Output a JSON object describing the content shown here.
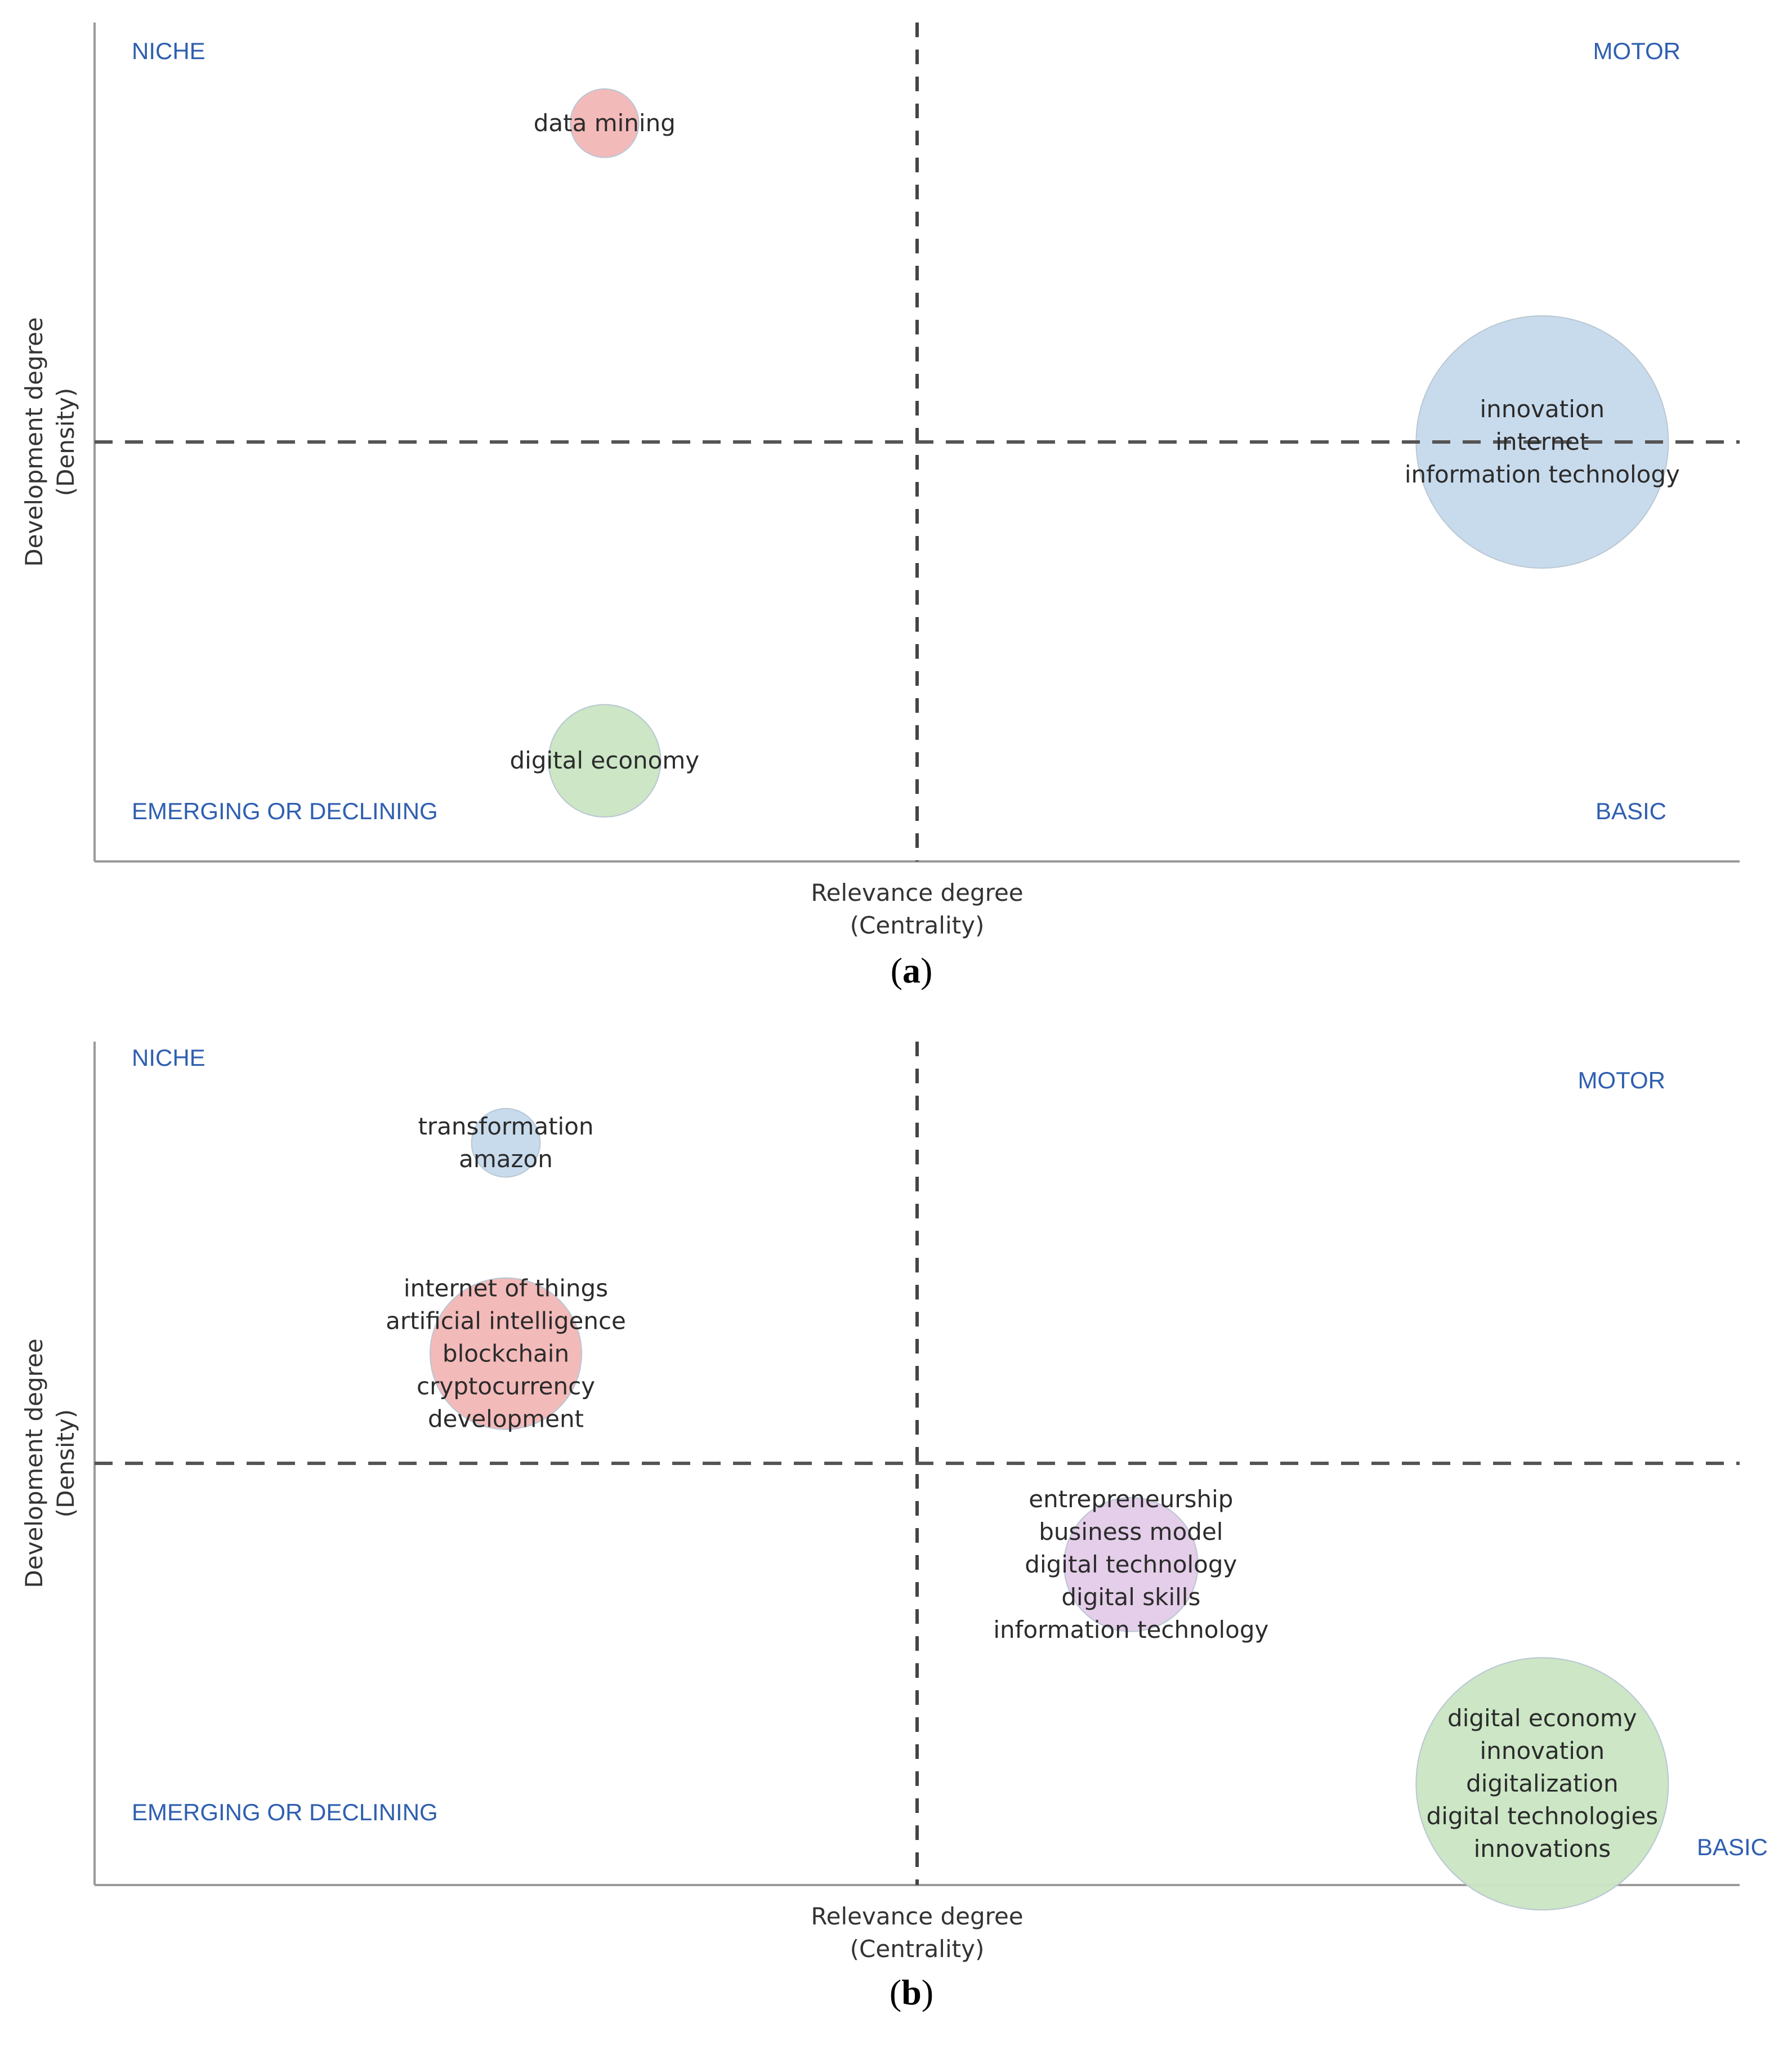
{
  "chart_data": [
    {
      "type": "scatter",
      "subtype": "strategic-diagram-bubble",
      "panel_label": "(a)",
      "xlabel": [
        "Relevance degree",
        "(Centrality)"
      ],
      "ylabel": [
        "Development degree",
        "(Density)"
      ],
      "xlim": [
        0,
        1
      ],
      "ylim": [
        0,
        1
      ],
      "grid": false,
      "quadrants": {
        "top_left": "NICHE",
        "top_right": "MOTOR",
        "bottom_left": "EMERGING OR DECLINING",
        "bottom_right": "BASIC"
      },
      "clusters": [
        {
          "labels": [
            "data mining"
          ],
          "x": 0.31,
          "y": 0.88,
          "size": 0.02,
          "color": "#f2b6b6"
        },
        {
          "labels": [
            "innovation",
            "internet",
            "information technology"
          ],
          "x": 0.88,
          "y": 0.5,
          "size": 1.0,
          "color": "#c5d9ec"
        },
        {
          "labels": [
            "digital economy"
          ],
          "x": 0.31,
          "y": 0.12,
          "size": 0.12,
          "color": "#c9e5c3"
        }
      ]
    },
    {
      "type": "scatter",
      "subtype": "strategic-diagram-bubble",
      "panel_label": "(b)",
      "xlabel": [
        "Relevance degree",
        "(Centrality)"
      ],
      "ylabel": [
        "Development degree",
        "(Density)"
      ],
      "xlim": [
        0,
        1
      ],
      "ylim": [
        0,
        1
      ],
      "grid": false,
      "quadrants": {
        "top_left": "NICHE",
        "top_right": "MOTOR",
        "bottom_left": "EMERGING OR DECLINING",
        "bottom_right": "BASIC"
      },
      "clusters": [
        {
          "labels": [
            "transformation",
            "amazon"
          ],
          "x": 0.25,
          "y": 0.88,
          "size": 0.02,
          "color": "#c5d9ec"
        },
        {
          "labels": [
            "internet of things",
            "artificial intelligence",
            "blockchain",
            "cryptocurrency",
            "development"
          ],
          "x": 0.25,
          "y": 0.63,
          "size": 0.28,
          "color": "#f2b6b6"
        },
        {
          "labels": [
            "entrepreneurship",
            "business model",
            "digital technology",
            "digital skills",
            "information technology"
          ],
          "x": 0.63,
          "y": 0.38,
          "size": 0.2,
          "color": "#e3cbe8"
        },
        {
          "labels": [
            "digital economy",
            "innovation",
            "digitalization",
            "digital technologies",
            "innovations"
          ],
          "x": 0.88,
          "y": 0.12,
          "size": 1.0,
          "color": "#c9e5c3"
        }
      ]
    }
  ]
}
